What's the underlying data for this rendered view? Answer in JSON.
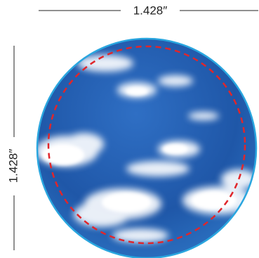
{
  "dimensions": {
    "width": "1.428″",
    "height": "1.428″"
  }
}
